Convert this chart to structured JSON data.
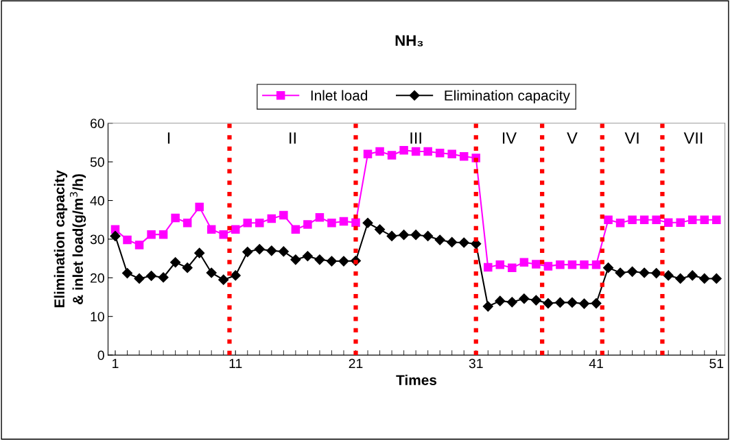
{
  "chart_data": {
    "type": "line",
    "title": "NH₃",
    "xlabel": "Times",
    "ylabel": "Elimination capacity\n& inlet load(g/m$^{3}$/h)",
    "x": [
      1,
      2,
      3,
      4,
      5,
      6,
      7,
      8,
      9,
      10,
      11,
      12,
      13,
      14,
      15,
      16,
      17,
      18,
      19,
      20,
      21,
      22,
      23,
      24,
      25,
      26,
      27,
      28,
      29,
      30,
      31,
      32,
      33,
      34,
      35,
      36,
      37,
      38,
      39,
      40,
      41,
      42,
      43,
      44,
      45,
      46,
      47,
      48,
      49,
      50,
      51
    ],
    "series": [
      {
        "name": "Inlet load",
        "color": "#ff00ff",
        "marker": "square",
        "values": [
          32.5,
          29.8,
          28.5,
          31.2,
          31.2,
          35.5,
          34.2,
          38.3,
          32.5,
          31.2,
          32.5,
          34.2,
          34.2,
          35.3,
          36.2,
          32.5,
          33.8,
          35.6,
          34.2,
          34.6,
          34.3,
          52,
          52.7,
          51.7,
          53,
          52.7,
          52.7,
          52.3,
          52,
          51.4,
          51,
          22.7,
          23.4,
          22.6,
          24,
          23.5,
          23,
          23.4,
          23.4,
          23.4,
          23.4,
          35,
          34.2,
          35,
          35,
          35,
          34.3,
          34.3,
          35,
          35,
          35
        ]
      },
      {
        "name": "Elimination capacity",
        "color": "#000000",
        "marker": "diamond",
        "values": [
          30.8,
          21.2,
          19.8,
          20.5,
          20.1,
          24,
          22.6,
          26.4,
          21.3,
          19.5,
          20.6,
          26.7,
          27.4,
          27,
          26.8,
          24.7,
          25.6,
          24.7,
          24.3,
          24.3,
          24.4,
          34.2,
          32.5,
          30.8,
          31.1,
          31.1,
          30.8,
          29.8,
          29.2,
          29.1,
          28.8,
          12.6,
          14,
          13.7,
          14.6,
          14.2,
          13.4,
          13.6,
          13.6,
          13.3,
          13.4,
          22.6,
          21.3,
          21.6,
          21.3,
          21.2,
          20.6,
          19.8,
          20.6,
          19.8,
          19.8
        ]
      }
    ],
    "xlim": [
      0.4,
      51.7
    ],
    "xticks": [
      1,
      11,
      21,
      31,
      41,
      51
    ],
    "ylim": [
      0,
      60
    ],
    "yticks": [
      0,
      10,
      20,
      30,
      40,
      50,
      60
    ],
    "ref_lines": [
      {
        "axis": "x",
        "value": 10.5,
        "color": "#ff0000",
        "line_style": "dotted"
      },
      {
        "axis": "x",
        "value": 21,
        "color": "#ff0000",
        "line_style": "dotted"
      },
      {
        "axis": "x",
        "value": 31,
        "color": "#ff0000",
        "line_style": "dotted"
      },
      {
        "axis": "x",
        "value": 36.5,
        "color": "#ff0000",
        "line_style": "dotted"
      },
      {
        "axis": "x",
        "value": 41.5,
        "color": "#ff0000",
        "line_style": "dotted"
      },
      {
        "axis": "x",
        "value": 46.5,
        "color": "#ff0000",
        "line_style": "dotted"
      }
    ],
    "annotations": [
      "I",
      "II",
      "III",
      "IV",
      "V",
      "VI",
      "VII"
    ],
    "legend": "top",
    "grid": false
  }
}
